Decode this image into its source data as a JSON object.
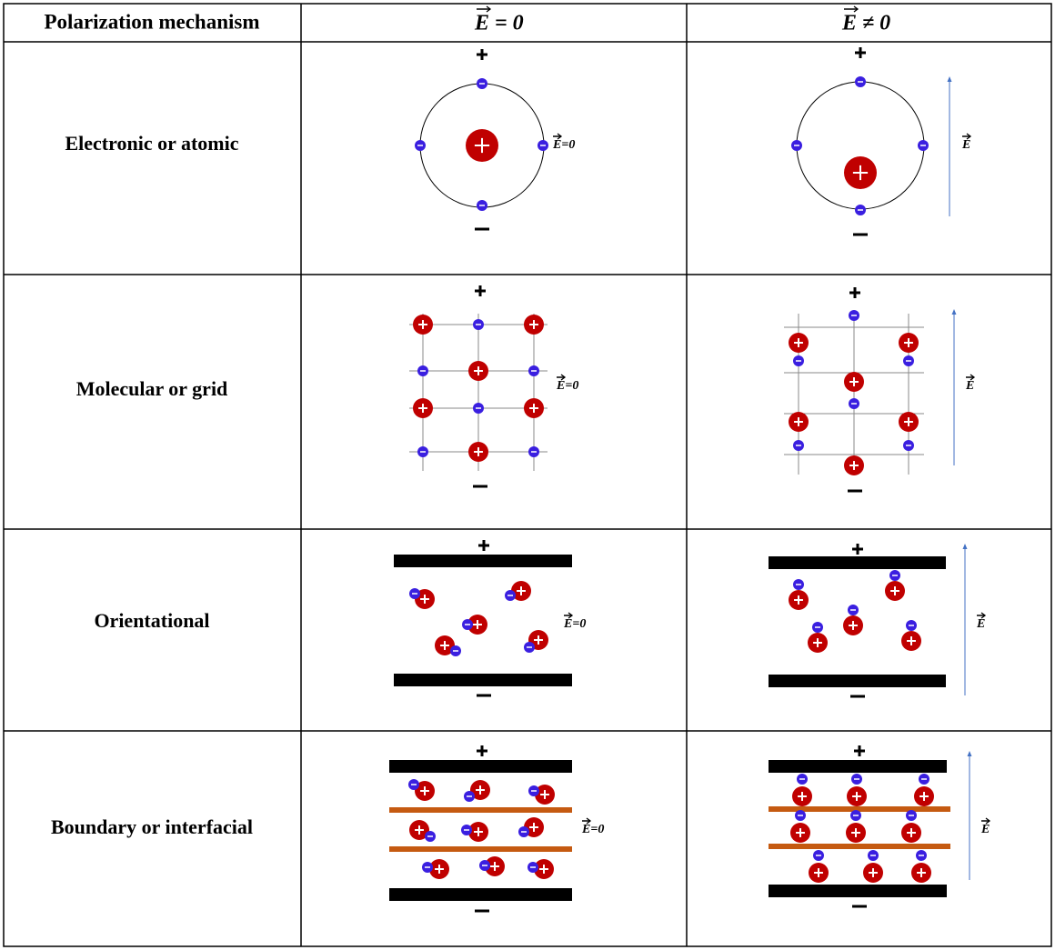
{
  "table": {
    "header": [
      "Polarization mechanism",
      "E = 0",
      "E ≠ 0"
    ],
    "rows": [
      "Electronic or atomic",
      "Molecular or grid",
      "Orientational",
      "Boundary or interfacial"
    ]
  },
  "diagram_labels": {
    "zero_field": "E=0",
    "field": "E"
  }
}
